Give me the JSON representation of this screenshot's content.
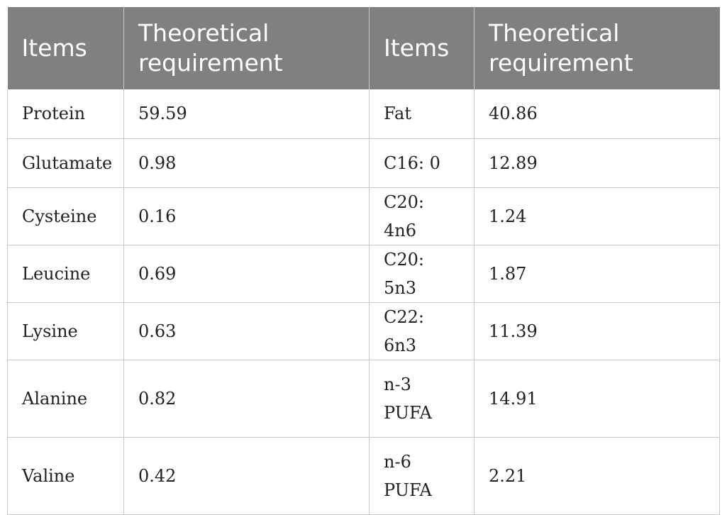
{
  "header": {
    "col1": "Items",
    "col2": "Theoretical requirement",
    "col3": "Items",
    "col4": "Theoretical requirement"
  },
  "rows": [
    {
      "item1": "Protein",
      "value1": "59.59",
      "item2": "Fat",
      "value2": "40.86"
    },
    {
      "item1": "Glutamate",
      "value1": "0.98",
      "item2": "C16: 0",
      "value2": "12.89"
    },
    {
      "item1": "Cysteine",
      "value1": "0.16",
      "item2": "C20: 4n6",
      "value2": "1.24"
    },
    {
      "item1": "Leucine",
      "value1": "0.69",
      "item2": "C20: 5n3",
      "value2": "1.87"
    },
    {
      "item1": "Lysine",
      "value1": "0.63",
      "item2": "C22: 6n3",
      "value2": "11.39"
    },
    {
      "item1": "Alanine",
      "value1": "0.82",
      "item2": "n-3 PUFA",
      "value2": "14.91"
    },
    {
      "item1": "Valine",
      "value1": "0.42",
      "item2": "n-6 PUFA",
      "value2": "2.21"
    }
  ],
  "colors": {
    "header_background": "#808080",
    "header_text": "#ffffff",
    "grid_line": "#c8c8c8"
  }
}
